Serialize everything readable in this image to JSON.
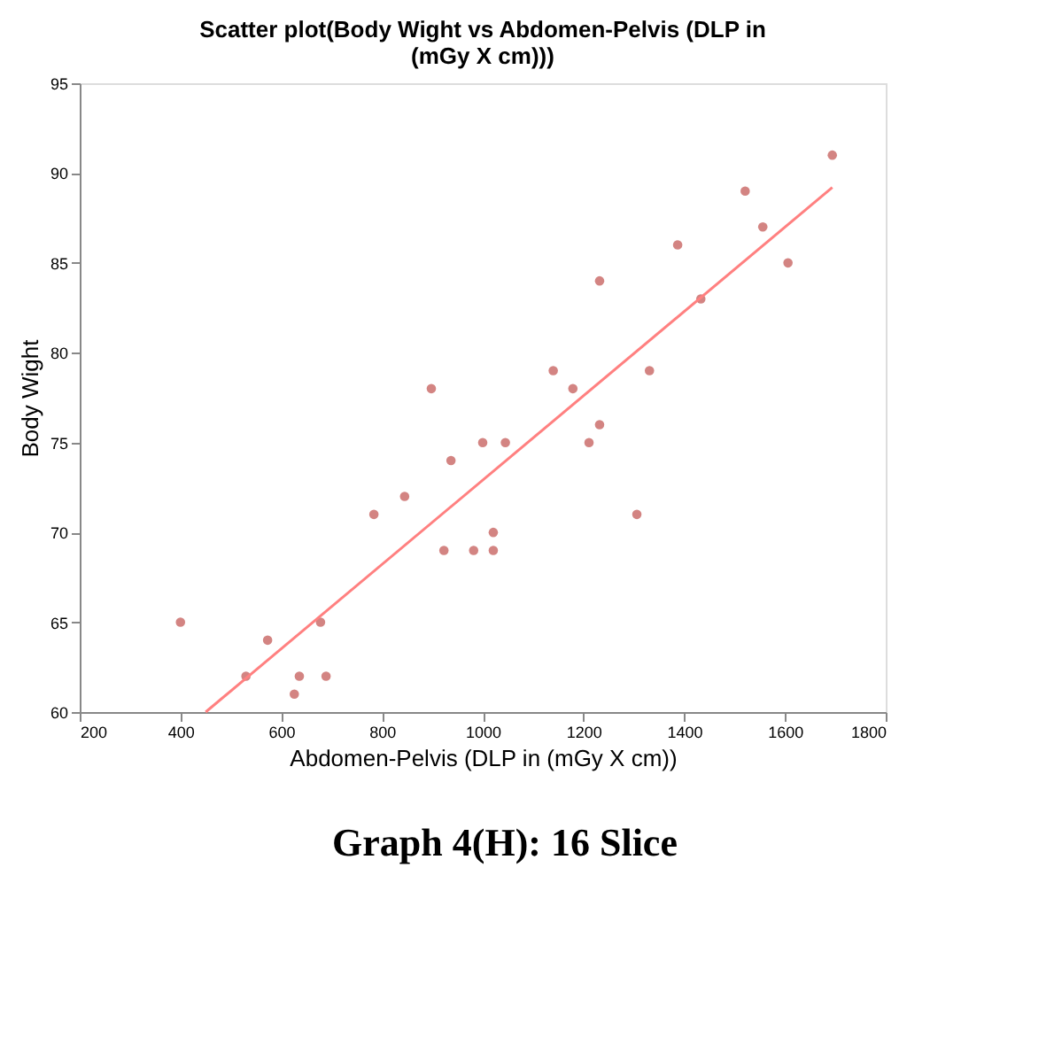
{
  "chart_data": {
    "type": "scatter",
    "title": [
      "Scatter plot(Body  Wight vs Abdomen-Pelvis  (DLP in",
      "(mGy  X cm)))"
    ],
    "xlabel": "Abdomen-Pelvis (DLP in (mGy X cm))",
    "ylabel": "Body Wight",
    "series": [
      {
        "color": "#c0504d",
        "marker": "circle",
        "x": [
          400,
          530,
          573,
          626,
          636,
          678,
          689,
          784,
          845,
          898,
          923,
          937,
          982,
          1000,
          1021,
          1021,
          1045,
          1140,
          1179,
          1211,
          1232,
          1232,
          1306,
          1331,
          1387,
          1433,
          1521,
          1556,
          1606,
          1694
        ],
        "values": [
          65,
          62,
          64,
          61,
          62,
          65,
          62,
          71,
          72,
          78,
          69,
          74,
          69,
          75,
          70,
          69,
          75,
          79,
          78,
          75,
          76,
          84,
          71,
          79,
          86,
          83,
          89,
          87,
          85,
          91
        ]
      },
      {
        "type": "line",
        "color": "#ff8080",
        "x": [
          450,
          1694
        ],
        "values": [
          60,
          89.2
        ]
      }
    ],
    "xlim": [
      200,
      1800
    ],
    "xticks": [
      200,
      400,
      600,
      800,
      1000,
      1200,
      1400,
      1600,
      1800
    ],
    "ylim": [
      60,
      95
    ],
    "yticks": [
      60,
      65,
      70,
      75,
      80,
      85,
      90,
      95
    ],
    "grid": false,
    "annotations": [
      "Graph 4(H): 16 Slice"
    ]
  }
}
